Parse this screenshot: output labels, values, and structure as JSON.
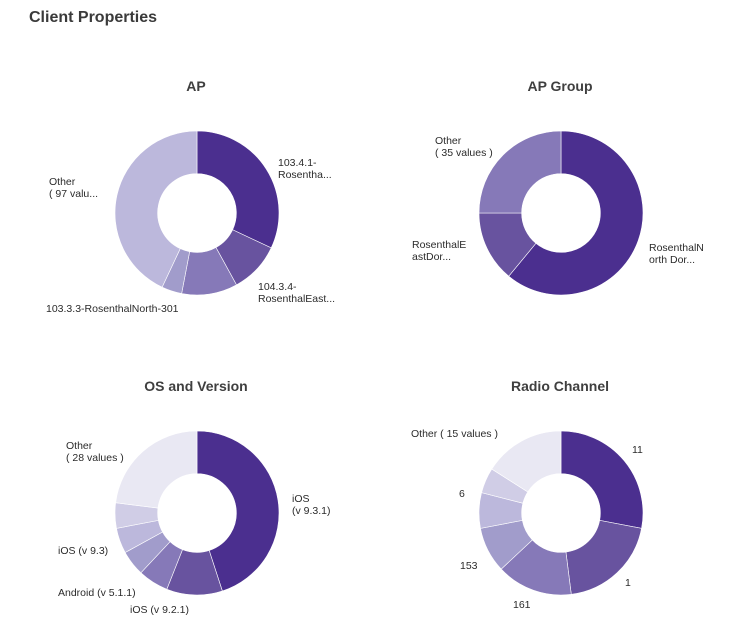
{
  "page_title": "Client Properties",
  "colors": {
    "c1": "#4b2f8f",
    "c2": "#68539f",
    "c3": "#8679b8",
    "c4": "#a19ccb",
    "c5": "#bcb8dc",
    "c6": "#d0cde6",
    "c7": "#e9e8f3"
  },
  "chart_data": [
    {
      "type": "pie",
      "title": "AP",
      "labels": [
        "103.4.1-\nRosentha...",
        "104.3.4-\nRosenthalEast...",
        "103.3.3-RosenthalNorth-301",
        "",
        "Other\n( 97 valu..."
      ],
      "values": [
        32,
        10,
        11,
        4,
        43
      ],
      "hole": 0.48
    },
    {
      "type": "pie",
      "title": "AP Group",
      "labels": [
        "RosenthalN\north Dor...",
        "RosenthalE\nastDor...",
        "Other\n( 35 values )"
      ],
      "values": [
        61,
        14,
        25
      ],
      "hole": 0.48
    },
    {
      "type": "pie",
      "title": "OS and Version",
      "labels": [
        "iOS\n(v 9.3.1)",
        "iOS (v 9.2.1)",
        "Android (v 5.1.1)",
        "",
        "iOS (v 9.3)",
        "",
        "Other\n( 28 values )"
      ],
      "values": [
        45,
        11,
        6,
        5,
        5,
        5,
        23
      ],
      "hole": 0.48
    },
    {
      "type": "pie",
      "title": "Radio Channel",
      "labels": [
        "11",
        "1",
        "161",
        "153",
        "",
        "6",
        "Other ( 15 values )"
      ],
      "values": [
        28,
        20,
        15,
        9,
        7,
        5,
        16
      ],
      "hole": 0.48
    }
  ]
}
